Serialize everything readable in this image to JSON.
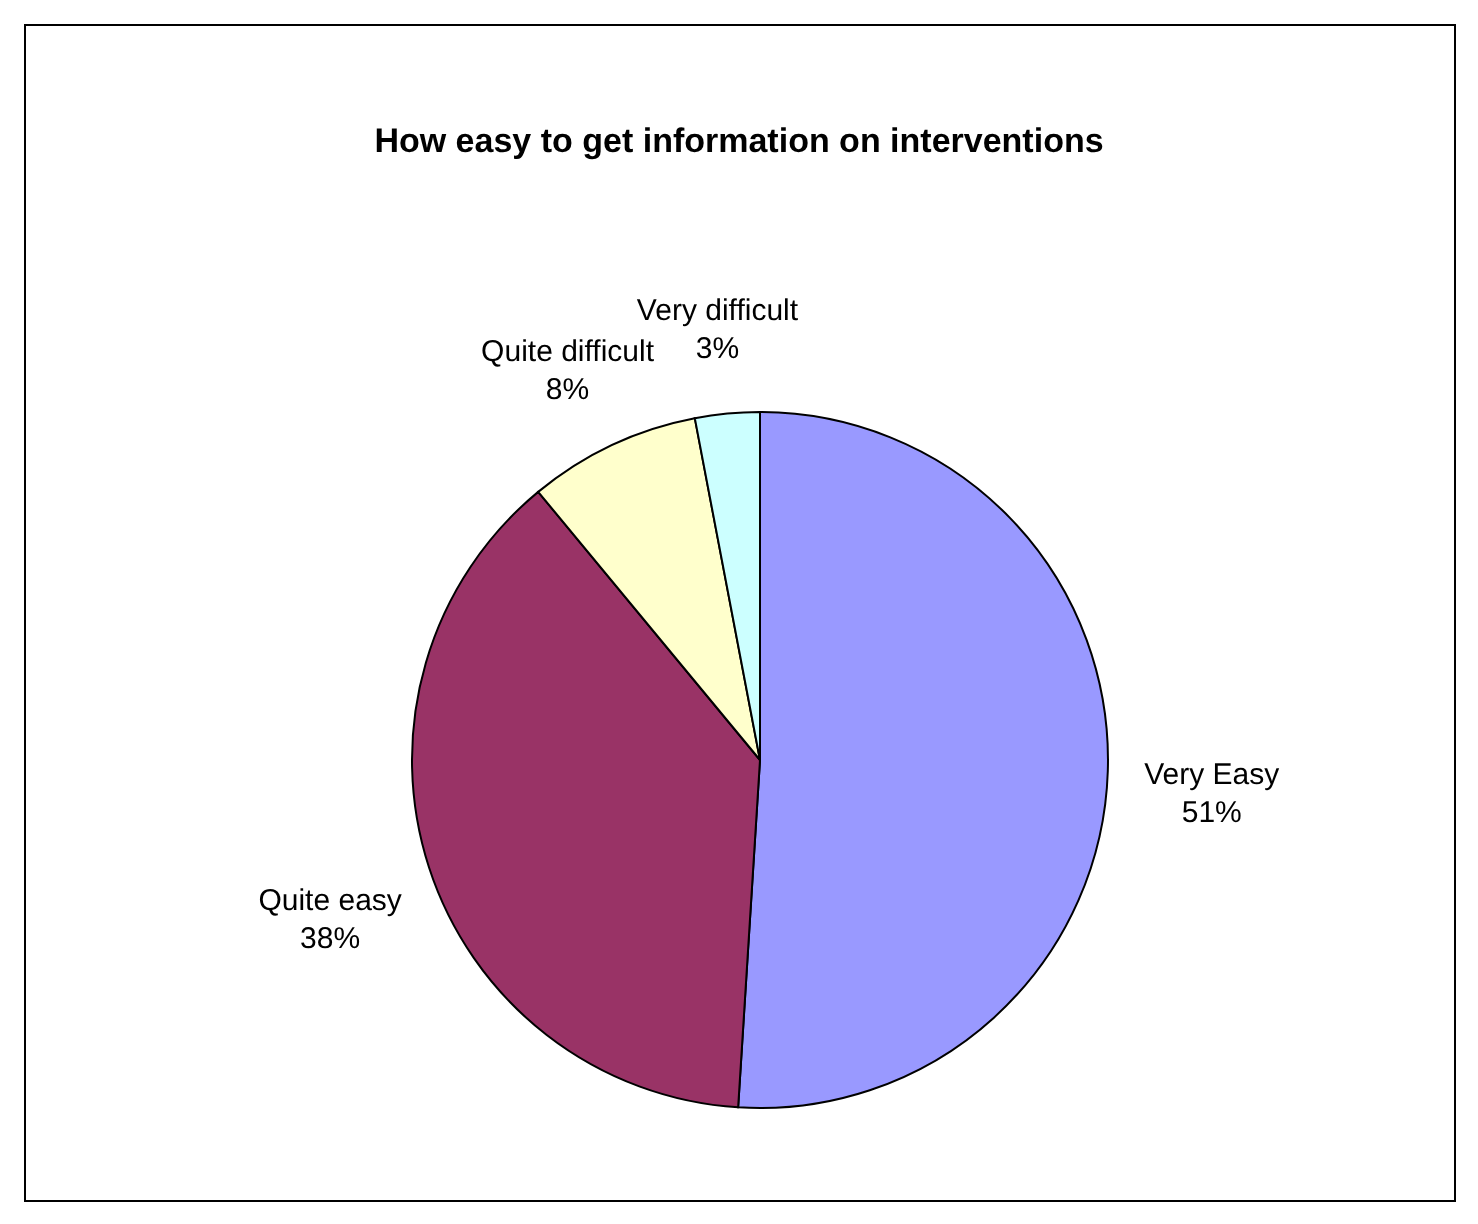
{
  "chart_data": {
    "type": "pie",
    "title": "How easy to get information on interventions",
    "categories": [
      "Very Easy",
      "Quite easy",
      "Quite difficult",
      "Very difficult"
    ],
    "values": [
      51,
      38,
      8,
      3
    ],
    "colors": [
      "#9999ff",
      "#993366",
      "#ffffcc",
      "#ccffff"
    ],
    "value_labels": [
      "51%",
      "38%",
      "8%",
      "3%"
    ]
  }
}
